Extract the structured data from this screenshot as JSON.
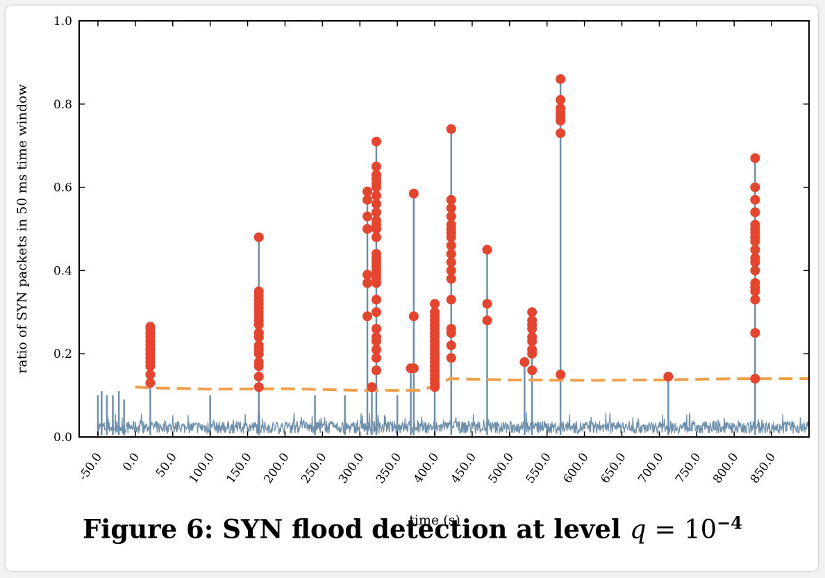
{
  "caption": {
    "text": "Figure 6: SYN flood detection at level",
    "math_var": "q",
    "math_eq": " = 10",
    "math_exp": "−4"
  },
  "colors": {
    "signal": "#6e8fab",
    "detection": "#e4452f",
    "threshold": "#f0a04b",
    "axis": "#000000"
  },
  "chart_data": {
    "type": "line",
    "title": "",
    "xlabel": "time (s)",
    "ylabel": "ratio of SYN packets in 50 ms time window",
    "xlim": [
      -75,
      900
    ],
    "ylim": [
      0,
      1.0
    ],
    "xticks": [
      -50,
      0,
      50,
      100,
      150,
      200,
      250,
      300,
      350,
      400,
      450,
      500,
      550,
      600,
      650,
      700,
      750,
      800,
      850
    ],
    "xtick_labels": [
      "-50.0",
      "0.0",
      "50.0",
      "100.0",
      "150.0",
      "200.0",
      "250.0",
      "300.0",
      "350.0",
      "400.0",
      "450.0",
      "500.0",
      "550.0",
      "600.0",
      "650.0",
      "700.0",
      "750.0",
      "800.0",
      "850.0"
    ],
    "yticks": [
      0.0,
      0.2,
      0.4,
      0.6,
      0.8,
      1.0
    ],
    "ytick_labels": [
      "0.0",
      "0.2",
      "0.4",
      "0.6",
      "0.8",
      "1.0"
    ],
    "grid": false,
    "baseline_noise": {
      "x_start": -50,
      "x_end": 900,
      "typical_max": 0.06
    },
    "spikes": [
      {
        "x": -50,
        "y": 0.1
      },
      {
        "x": -45,
        "y": 0.11
      },
      {
        "x": -38,
        "y": 0.1
      },
      {
        "x": -30,
        "y": 0.1
      },
      {
        "x": -22,
        "y": 0.11
      },
      {
        "x": -15,
        "y": 0.09
      },
      {
        "x": 20,
        "y": 0.27
      },
      {
        "x": 100,
        "y": 0.1
      },
      {
        "x": 165,
        "y": 0.48
      },
      {
        "x": 240,
        "y": 0.1
      },
      {
        "x": 280,
        "y": 0.1
      },
      {
        "x": 310,
        "y": 0.59
      },
      {
        "x": 316,
        "y": 0.12
      },
      {
        "x": 322,
        "y": 0.71
      },
      {
        "x": 350,
        "y": 0.1
      },
      {
        "x": 368,
        "y": 0.17
      },
      {
        "x": 372,
        "y": 0.58
      },
      {
        "x": 400,
        "y": 0.32
      },
      {
        "x": 422,
        "y": 0.74
      },
      {
        "x": 470,
        "y": 0.45
      },
      {
        "x": 520,
        "y": 0.18
      },
      {
        "x": 530,
        "y": 0.3
      },
      {
        "x": 568,
        "y": 0.86
      },
      {
        "x": 712,
        "y": 0.15
      },
      {
        "x": 828,
        "y": 0.67
      }
    ],
    "detections": [
      {
        "x": 20,
        "y": [
          0.13,
          0.15,
          0.17,
          0.18,
          0.19,
          0.2,
          0.21,
          0.22,
          0.23,
          0.24,
          0.25,
          0.26,
          0.265
        ]
      },
      {
        "x": 165,
        "y": [
          0.12,
          0.145,
          0.17,
          0.18,
          0.2,
          0.21,
          0.22,
          0.24,
          0.25,
          0.27,
          0.28,
          0.29,
          0.3,
          0.31,
          0.32,
          0.33,
          0.34,
          0.35,
          0.48
        ]
      },
      {
        "x": 310,
        "y": [
          0.29,
          0.37,
          0.39,
          0.5,
          0.53,
          0.57,
          0.59
        ]
      },
      {
        "x": 316,
        "y": [
          0.12
        ]
      },
      {
        "x": 322,
        "y": [
          0.16,
          0.19,
          0.21,
          0.23,
          0.24,
          0.26,
          0.3,
          0.33,
          0.37,
          0.38,
          0.39,
          0.4,
          0.41,
          0.42,
          0.43,
          0.44,
          0.48,
          0.5,
          0.51,
          0.52,
          0.54,
          0.56,
          0.58,
          0.6,
          0.61,
          0.62,
          0.63,
          0.65,
          0.71
        ]
      },
      {
        "x": 368,
        "y": [
          0.165
        ]
      },
      {
        "x": 372,
        "y": [
          0.165,
          0.29,
          0.585
        ]
      },
      {
        "x": 400,
        "y": [
          0.12,
          0.13,
          0.14,
          0.15,
          0.16,
          0.17,
          0.18,
          0.19,
          0.2,
          0.21,
          0.22,
          0.23,
          0.24,
          0.25,
          0.26,
          0.27,
          0.28,
          0.29,
          0.3,
          0.32
        ]
      },
      {
        "x": 422,
        "y": [
          0.19,
          0.22,
          0.25,
          0.26,
          0.33,
          0.38,
          0.4,
          0.42,
          0.44,
          0.46,
          0.48,
          0.49,
          0.5,
          0.51,
          0.53,
          0.55,
          0.57,
          0.74
        ]
      },
      {
        "x": 470,
        "y": [
          0.28,
          0.32,
          0.45
        ]
      },
      {
        "x": 520,
        "y": [
          0.18
        ]
      },
      {
        "x": 530,
        "y": [
          0.16,
          0.2,
          0.21,
          0.23,
          0.24,
          0.26,
          0.27,
          0.28,
          0.3
        ]
      },
      {
        "x": 568,
        "y": [
          0.15,
          0.73,
          0.76,
          0.77,
          0.78,
          0.79,
          0.81,
          0.86
        ]
      },
      {
        "x": 712,
        "y": [
          0.145
        ]
      },
      {
        "x": 828,
        "y": [
          0.14,
          0.25,
          0.33,
          0.35,
          0.36,
          0.37,
          0.4,
          0.42,
          0.43,
          0.45,
          0.47,
          0.48,
          0.49,
          0.5,
          0.51,
          0.54,
          0.57,
          0.6,
          0.67
        ]
      }
    ],
    "threshold": {
      "style": "dashed",
      "points": [
        [
          0,
          0.12
        ],
        [
          20,
          0.118
        ],
        [
          100,
          0.115
        ],
        [
          200,
          0.116
        ],
        [
          300,
          0.112
        ],
        [
          380,
          0.112
        ],
        [
          405,
          0.125
        ],
        [
          420,
          0.14
        ],
        [
          500,
          0.137
        ],
        [
          600,
          0.136
        ],
        [
          700,
          0.137
        ],
        [
          800,
          0.14
        ],
        [
          900,
          0.14
        ]
      ]
    }
  }
}
